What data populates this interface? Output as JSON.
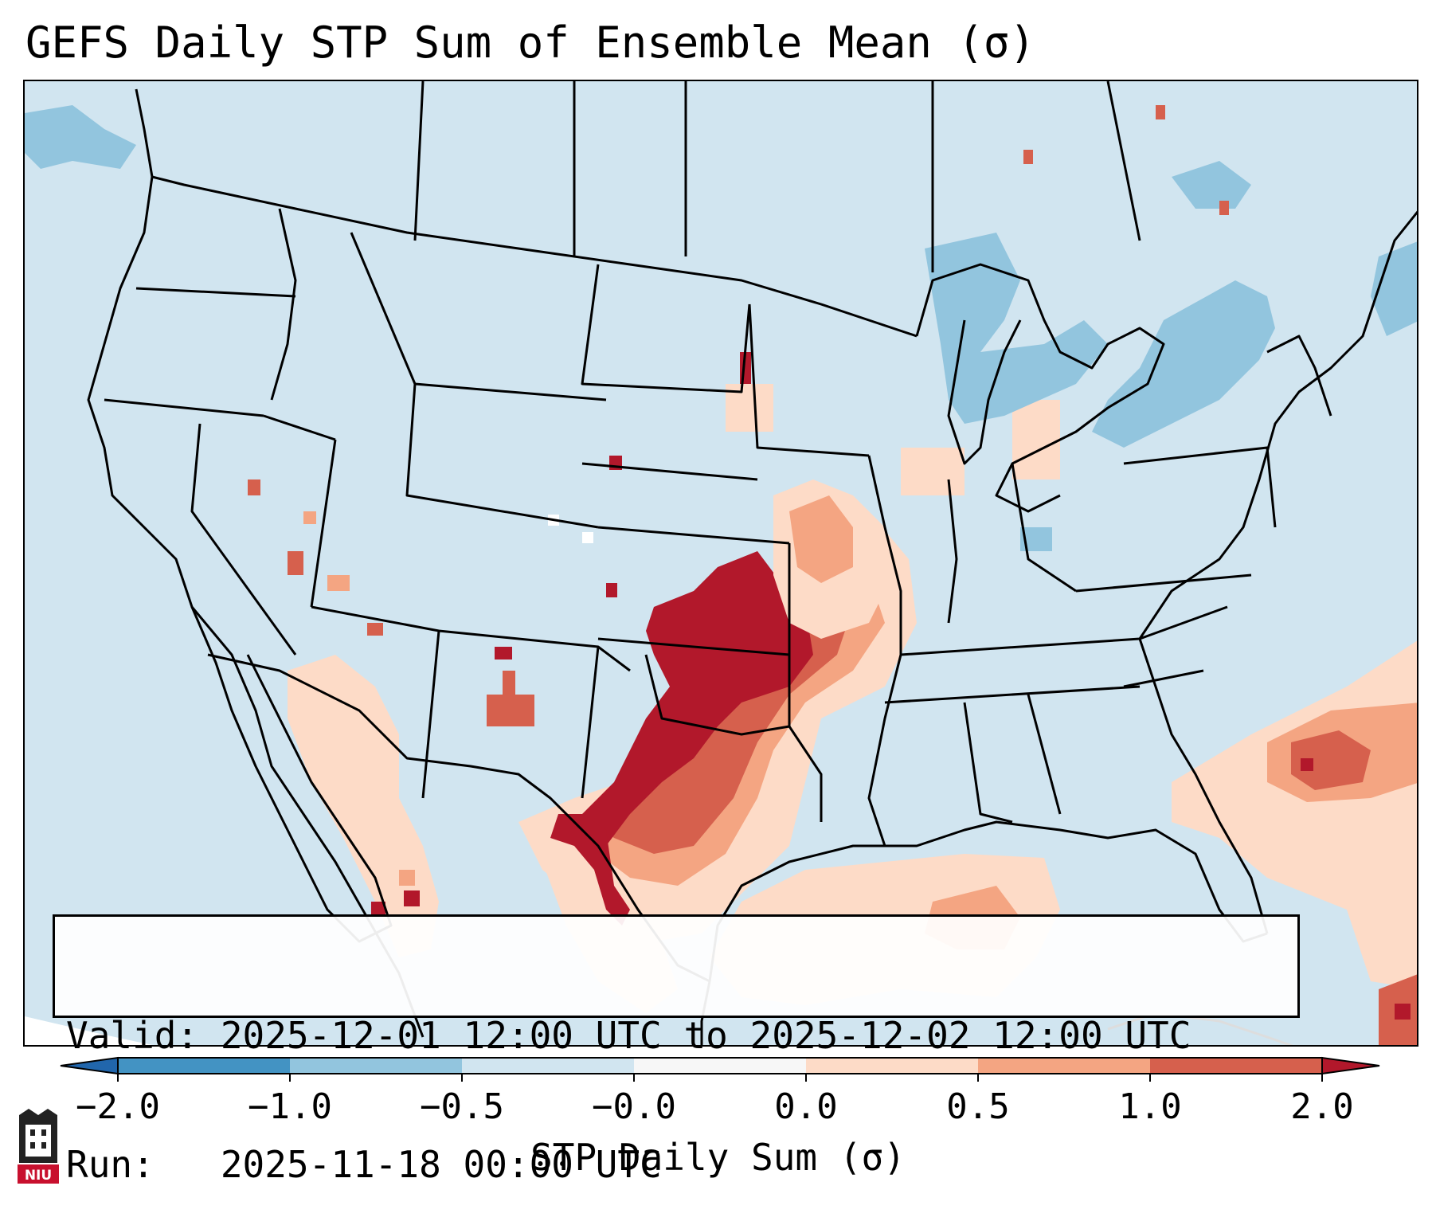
{
  "title": "GEFS Daily STP Sum of Ensemble Mean (σ)",
  "info": {
    "valid_line": "Valid: 2025-12-01 12:00 UTC to 2025-12-02 12:00 UTC",
    "run_line": "Run:   2025-11-18 00:00 UTC"
  },
  "colorbar": {
    "label": "STP Daily Sum (σ)",
    "ticks": [
      "−2.0",
      "−1.0",
      "−0.5",
      "−0.0",
      "0.0",
      "0.5",
      "1.0",
      "2.0"
    ],
    "colors": [
      "#4393c3",
      "#92c5de",
      "#d1e5f0",
      "#f7f7f7",
      "#fddbc7",
      "#f4a582",
      "#d6604d"
    ],
    "under_color": "#2166ac",
    "over_color": "#b2182b"
  },
  "logo": {
    "text": "NIU"
  },
  "colors": {
    "background": "#d1e5f0",
    "border": "#000000"
  }
}
